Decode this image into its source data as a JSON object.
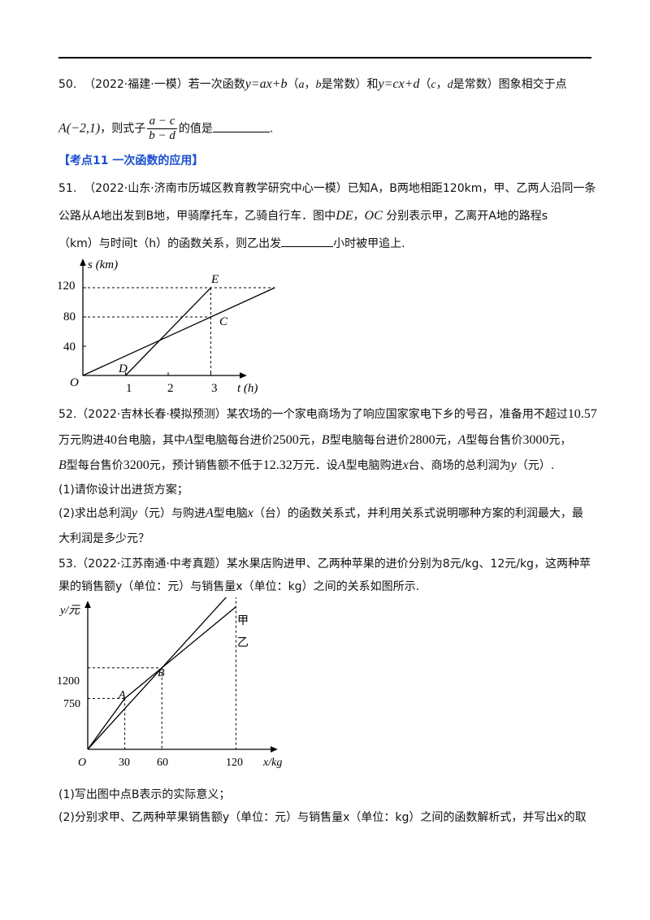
{
  "q50": {
    "num": "50.",
    "source": "（2022·福建·一模）",
    "t1": "若一次函数",
    "f1": "y=ax+b",
    "t2": "（",
    "a": "a",
    "t3": "，",
    "b": "b",
    "t4": "是常数）和",
    "f2": "y=cx+d",
    "t5": "（",
    "c": "c",
    "t6": "，",
    "d": "d",
    "t7": "是常数）图象相交于点",
    "pointA": "A(−2,1)",
    "t8": "，则式子",
    "frac_num": "a − c",
    "frac_den": "b − d",
    "t9": "的值是",
    "t10": "."
  },
  "kaodian": "【考点11  一次函数的应用】",
  "q51": {
    "num": "51.",
    "source": "（2022·山东·济南市历城区教育教学研究中心一模）",
    "l1": "已知A，B两地相距120km，甲、乙两人沿同一条",
    "l2a": "公路从A地出发到B地，甲骑摩托车，乙骑自行车．图中",
    "DE": "DE",
    "comma": "，",
    "OC": "OC",
    "l2b": "分别表示甲，乙离开A地的路程s",
    "l3a": "（km）与时间t（h）的函数关系，则乙出发",
    "l3b": "小时被甲追上."
  },
  "chart1": {
    "ylabel": "s (km)",
    "xlabel": "t (h)",
    "yticks": [
      "120",
      "80",
      "40"
    ],
    "xticks": [
      "1",
      "2",
      "3"
    ],
    "origin": "O",
    "labels": {
      "E": "E",
      "C": "C",
      "D": "D"
    }
  },
  "chart1_data": {
    "type": "line",
    "series": [
      {
        "name": "DE",
        "x": [
          1,
          3
        ],
        "y": [
          0,
          120
        ]
      },
      {
        "name": "OC",
        "x": [
          0,
          3,
          4.5
        ],
        "y": [
          0,
          80,
          120
        ]
      }
    ],
    "xlim": [
      0,
      4.8
    ],
    "ylim": [
      0,
      140
    ]
  },
  "q52": {
    "num": "52.",
    "source": "（2022·吉林长春·模拟预测）",
    "l1a": "某农场的一个家电商场为了响应国家家电下乡的号召，准备用不超过",
    "n1": "10.57",
    "l2a": "万元购进",
    "n2": "40",
    "l2b": "台电脑，其中",
    "A1": "A",
    "l2c": "型电脑每台进价",
    "n3": "2500",
    "l2d": "元，",
    "B1": "B",
    "l2e": "型电脑每台进价",
    "n4": "2800",
    "l2f": "元，",
    "A2": "A",
    "l2g": "型每台售价",
    "n5": "3000",
    "l2h": "元，",
    "B2": "B",
    "l3a": "型每台售价",
    "n6": "3200",
    "l3b": "元，预计销售额不低于",
    "n7": "12.32",
    "l3c": "万元．设",
    "A3": "A",
    "l3d": "型电脑购进",
    "x1": "x",
    "l3e": "台、商场的总利润为",
    "y1": "y",
    "l3f": "（元）.",
    "p1": "(1)请你设计出进货方案；",
    "p2a": "(2)求出总利润",
    "y2": "y",
    "p2b": "（元）与购进",
    "A4": "A",
    "p2c": "型电脑",
    "x2": "x",
    "p2d": "（台）的函数关系式，并利用关系式说明哪种方案的利润最大，最",
    "p3": "大利润是多少元？"
  },
  "q53": {
    "num": "53.",
    "source": "（2022·江苏南通·中考真题）",
    "l1": "某水果店购进甲、乙两种苹果的进价分别为8元/kg、12元/kg，这两种苹",
    "l2": "果的销售额y（单位：元）与销售量x（单位：kg）之间的关系如图所示.",
    "p1": "(1)写出图中点B表示的实际意义；",
    "p2": "(2)分别求甲、乙两种苹果销售额y（单位：元）与销售量x（单位：kg）之间的函数解析式，并写出x的取"
  },
  "chart2": {
    "ylabel": "y/元",
    "xlabel": "x/kg",
    "yticks": [
      "1200",
      "750"
    ],
    "xticks": [
      "30",
      "60",
      "120"
    ],
    "origin": "O",
    "labels": {
      "A": "A",
      "B": "B",
      "jia": "甲",
      "yi": "乙"
    }
  },
  "chart2_data": {
    "type": "line",
    "series": [
      {
        "name": "甲",
        "x": [
          0,
          60,
          120
        ],
        "y": [
          0,
          1200,
          2400
        ]
      },
      {
        "name": "乙",
        "x": [
          0,
          30,
          60,
          120
        ],
        "y": [
          0,
          750,
          1200,
          2100
        ]
      }
    ],
    "xlim": [
      0,
      150
    ],
    "ylim": [
      0,
      2700
    ]
  }
}
